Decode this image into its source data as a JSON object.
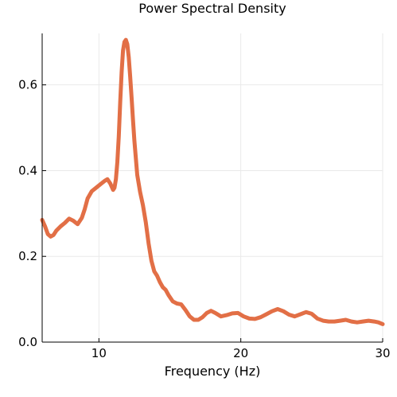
{
  "chart_data": {
    "type": "line",
    "title": "Power Spectral Density",
    "xlabel": "Frequency (Hz)",
    "ylabel": "",
    "xlim": [
      6,
      30
    ],
    "ylim": [
      0,
      0.72
    ],
    "xticks": [
      10,
      20,
      30
    ],
    "xtick_labels": [
      "10",
      "20",
      "30"
    ],
    "yticks": [
      0.0,
      0.2,
      0.4,
      0.6
    ],
    "ytick_labels": [
      "0.0",
      "0.2",
      "0.4",
      "0.6"
    ],
    "grid": true,
    "legend": "none",
    "series": [
      {
        "color": "#e26f46",
        "x": [
          6.0,
          6.2,
          6.4,
          6.6,
          6.8,
          7.0,
          7.3,
          7.6,
          7.9,
          8.2,
          8.5,
          8.8,
          9.0,
          9.2,
          9.5,
          9.8,
          10.1,
          10.4,
          10.6,
          10.8,
          11.0,
          11.1,
          11.2,
          11.3,
          11.4,
          11.5,
          11.6,
          11.7,
          11.8,
          11.9,
          12.0,
          12.1,
          12.2,
          12.3,
          12.4,
          12.5,
          12.6,
          12.7,
          12.9,
          13.1,
          13.3,
          13.5,
          13.7,
          13.9,
          14.1,
          14.3,
          14.5,
          14.7,
          14.9,
          15.2,
          15.5,
          15.8,
          16.1,
          16.4,
          16.7,
          17.0,
          17.3,
          17.6,
          17.9,
          18.2,
          18.6,
          19.0,
          19.4,
          19.8,
          20.2,
          20.6,
          21.0,
          21.4,
          21.8,
          22.2,
          22.6,
          23.0,
          23.4,
          23.8,
          24.2,
          24.6,
          25.0,
          25.4,
          25.8,
          26.2,
          26.6,
          27.0,
          27.4,
          27.8,
          28.2,
          28.6,
          29.0,
          29.4,
          29.7,
          30.0
        ],
        "values": [
          0.285,
          0.27,
          0.252,
          0.246,
          0.25,
          0.26,
          0.27,
          0.278,
          0.288,
          0.283,
          0.275,
          0.29,
          0.31,
          0.335,
          0.352,
          0.36,
          0.368,
          0.376,
          0.38,
          0.37,
          0.355,
          0.36,
          0.38,
          0.42,
          0.48,
          0.56,
          0.63,
          0.68,
          0.7,
          0.705,
          0.695,
          0.665,
          0.62,
          0.57,
          0.52,
          0.47,
          0.43,
          0.39,
          0.35,
          0.32,
          0.28,
          0.23,
          0.19,
          0.165,
          0.155,
          0.14,
          0.128,
          0.122,
          0.11,
          0.095,
          0.09,
          0.088,
          0.075,
          0.06,
          0.052,
          0.052,
          0.058,
          0.068,
          0.073,
          0.068,
          0.06,
          0.063,
          0.067,
          0.068,
          0.06,
          0.055,
          0.054,
          0.058,
          0.065,
          0.072,
          0.077,
          0.072,
          0.064,
          0.06,
          0.065,
          0.07,
          0.066,
          0.055,
          0.05,
          0.048,
          0.048,
          0.05,
          0.052,
          0.048,
          0.046,
          0.048,
          0.05,
          0.048,
          0.046,
          0.042
        ]
      }
    ]
  }
}
